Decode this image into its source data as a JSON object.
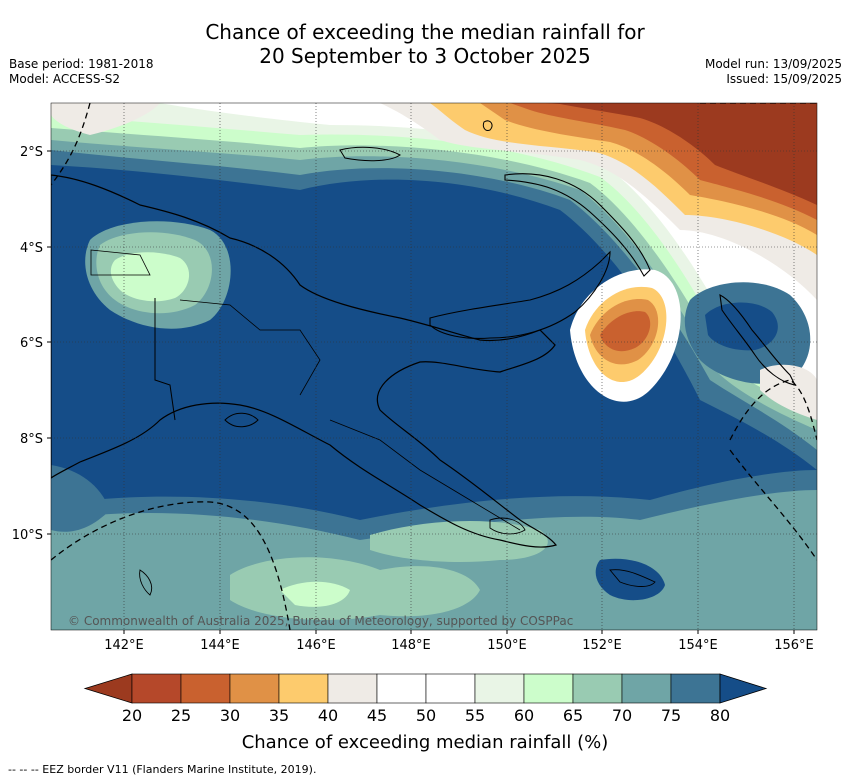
{
  "title_line1": "Chance of exceeding the median rainfall for",
  "title_line2": "20 September to 3 October 2025",
  "base_period": "Base period: 1981-2018",
  "model": "Model: ACCESS-S2",
  "model_run": "Model run: 13/09/2025",
  "issued": "Issued: 15/09/2025",
  "copyright": "© Commonwealth of Australia 2025, Bureau of Meteorology, supported by COSPPac",
  "footnote": "-- -- -- EEZ border V11 (Flanders Marine Institute, 2019).",
  "lon_ticks": [
    "142°E",
    "144°E",
    "146°E",
    "148°E",
    "150°E",
    "152°E",
    "154°E",
    "156°E"
  ],
  "lat_ticks": [
    "2°S",
    "4°S",
    "6°S",
    "8°S",
    "10°S"
  ],
  "colorbar": {
    "title": "Chance of exceeding median rainfall (%)",
    "labels": [
      "20",
      "25",
      "30",
      "35",
      "40",
      "45",
      "50",
      "55",
      "60",
      "65",
      "70",
      "75",
      "80"
    ],
    "colors": [
      "#9c3a1f",
      "#b5482a",
      "#c9612f",
      "#e09146",
      "#fdcb6d",
      "#efebe6",
      "#ffffff",
      "#ffffff",
      "#e9f5e6",
      "#ccfdcb",
      "#99cbb2",
      "#6fa5a6",
      "#3d7494",
      "#154d88"
    ]
  },
  "colors": {
    "deep_blue": "#154d88",
    "mid_blue": "#3d7494",
    "teal": "#6fa5a6",
    "sea_green": "#99cbb2",
    "light_green": "#ccfdcb",
    "pale_green": "#e9f5e6",
    "beige": "#efebe6",
    "yellow": "#fdcb6d",
    "orange": "#e09146",
    "dark_orange": "#c9612f",
    "red_brown": "#9c3a1f"
  }
}
